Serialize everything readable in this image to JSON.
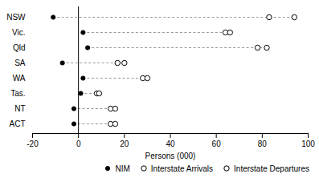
{
  "chart_data": {
    "type": "dot",
    "xlabel": "Persons (000)",
    "categories": [
      "NSW",
      "Vic.",
      "Qld",
      "SA",
      "WA",
      "Tas.",
      "NT",
      "ACT"
    ],
    "series": [
      {
        "name": "NIM",
        "color": "#000000",
        "marker": "filled",
        "values": [
          -11,
          2,
          4,
          -7,
          2,
          1,
          -2,
          -2
        ]
      },
      {
        "name": "Interstate Arrivals",
        "color": "#000000",
        "marker": "open",
        "values": [
          83,
          64,
          78,
          17,
          28,
          8,
          14,
          14
        ]
      },
      {
        "name": "Interstate Departures",
        "color": "#000000",
        "marker": "open",
        "values": [
          94,
          66,
          82,
          20,
          30,
          9,
          16,
          16
        ]
      }
    ],
    "color": "#999999",
    "line_style": "dashed",
    "xlim": [
      -20,
      100
    ],
    "xticks": [
      -20,
      0,
      20,
      40,
      60,
      80,
      100
    ],
    "grid": false,
    "legend": "lower right"
  }
}
